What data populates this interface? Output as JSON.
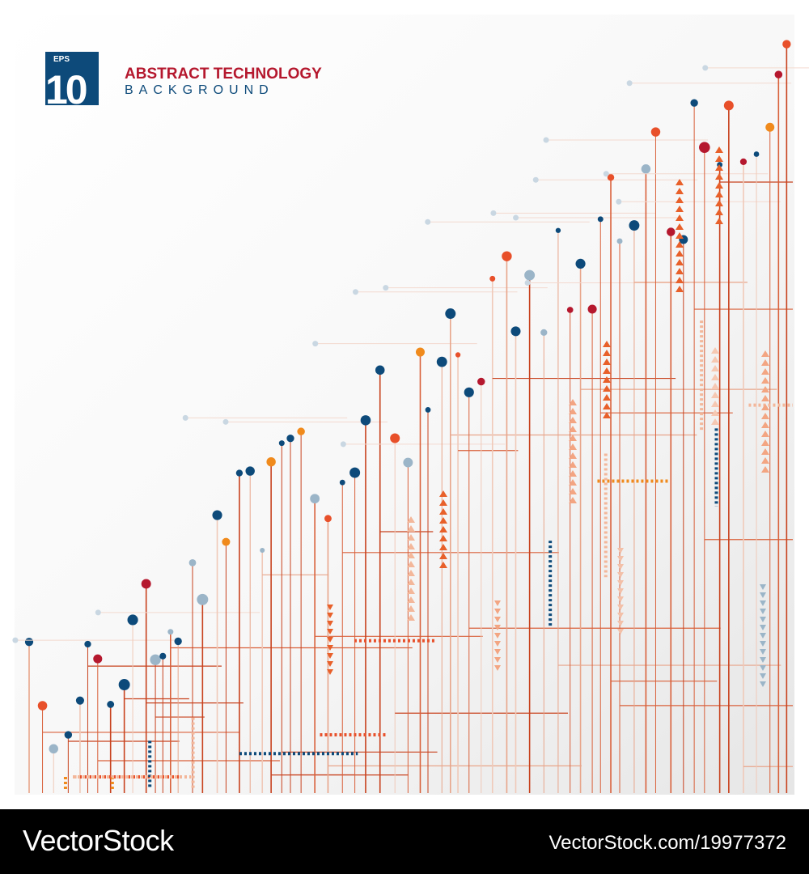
{
  "badge": {
    "format": "EPS",
    "version": "10"
  },
  "title": "ABSTRACT TECHNOLOGY",
  "subtitle": "BACKGROUND",
  "footer": {
    "brand": "VectorStock",
    "url": "VectorStock.com/19977372"
  }
}
